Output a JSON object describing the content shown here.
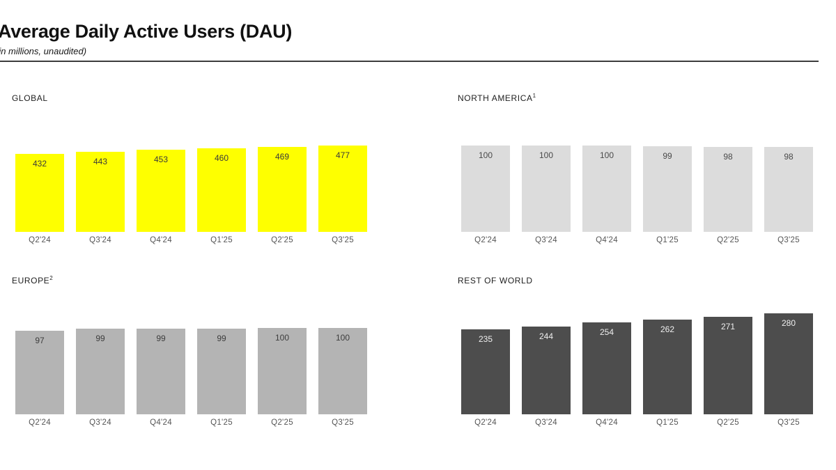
{
  "header": {
    "title": "Average Daily Active Users (DAU)",
    "subtitle": "(in millions, unaudited)"
  },
  "colors": {
    "global_bar": "#feff00",
    "north_america_bar": "#dcdcdc",
    "europe_bar": "#b4b4b4",
    "rest_of_world_bar": "#4d4d4d",
    "rule": "#3c3c3c"
  },
  "chart_data": [
    {
      "type": "bar",
      "title": "GLOBAL",
      "footnote": "",
      "categories": [
        "Q2'24",
        "Q3'24",
        "Q4'24",
        "Q1'25",
        "Q2'25",
        "Q3'25"
      ],
      "values": [
        432,
        443,
        453,
        460,
        469,
        477
      ],
      "ylim": [
        0,
        500
      ],
      "bar_color": "#feff00",
      "value_label_color": "#3a3a3a",
      "legend": "none",
      "grid": false
    },
    {
      "type": "bar",
      "title": "NORTH AMERICA",
      "footnote": "1",
      "categories": [
        "Q2'24",
        "Q3'24",
        "Q4'24",
        "Q1'25",
        "Q2'25",
        "Q3'25"
      ],
      "values": [
        100,
        100,
        100,
        99,
        98,
        98
      ],
      "ylim": [
        0,
        100
      ],
      "bar_color": "#dcdcdc",
      "value_label_color": "#4a4a4a",
      "legend": "none",
      "grid": false
    },
    {
      "type": "bar",
      "title": "EUROPE",
      "footnote": "2",
      "categories": [
        "Q2'24",
        "Q3'24",
        "Q4'24",
        "Q1'25",
        "Q2'25",
        "Q3'25"
      ],
      "values": [
        97,
        99,
        99,
        99,
        100,
        100
      ],
      "ylim": [
        0,
        100
      ],
      "bar_color": "#b4b4b4",
      "value_label_color": "#3d3d3d",
      "legend": "none",
      "grid": false
    },
    {
      "type": "bar",
      "title": "REST OF WORLD",
      "footnote": "",
      "categories": [
        "Q2'24",
        "Q3'24",
        "Q4'24",
        "Q1'25",
        "Q2'25",
        "Q3'25"
      ],
      "values": [
        235,
        244,
        254,
        262,
        271,
        280
      ],
      "ylim": [
        0,
        280
      ],
      "bar_color": "#4d4d4d",
      "value_label_color": "#efefef",
      "legend": "none",
      "grid": false
    }
  ]
}
